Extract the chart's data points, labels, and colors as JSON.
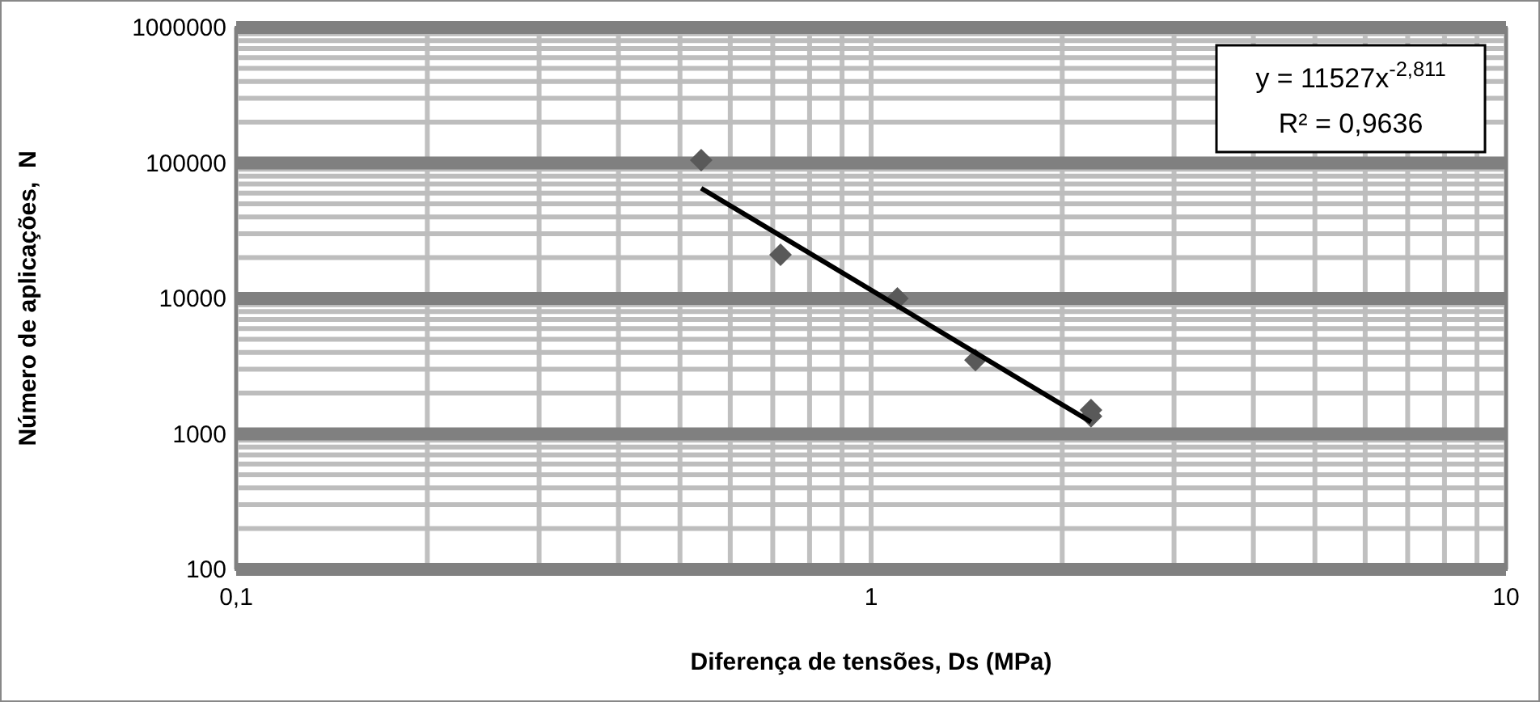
{
  "chart_data": {
    "type": "scatter",
    "xlabel": "Diferença de tensões, Ds (MPa)",
    "ylabel": "Número de aplicações,  N",
    "log": "xy",
    "grid": true,
    "marker": "diamond",
    "xlim": [
      0.1,
      10
    ],
    "xticks": [
      {
        "value": 0.1,
        "label": "0,1"
      },
      1,
      10
    ],
    "ylim": [
      100,
      1000000
    ],
    "yticks": [
      100,
      1000,
      10000,
      100000,
      1000000
    ],
    "series": [
      {
        "color": "#595959",
        "x": [
          0.54,
          0.72,
          1.1,
          1.46,
          2.22,
          2.22
        ],
        "values": [
          105000,
          21000,
          10000,
          3500,
          1500,
          1350
        ]
      },
      {
        "type": "line",
        "color": "#000000",
        "marker": "none",
        "x": [
          0.54,
          2.22
        ],
        "values": [
          65100,
          1225
        ]
      }
    ],
    "annotations": [
      "y = 11527x$^{-2,811}$",
      "R² = 0,9636"
    ]
  }
}
